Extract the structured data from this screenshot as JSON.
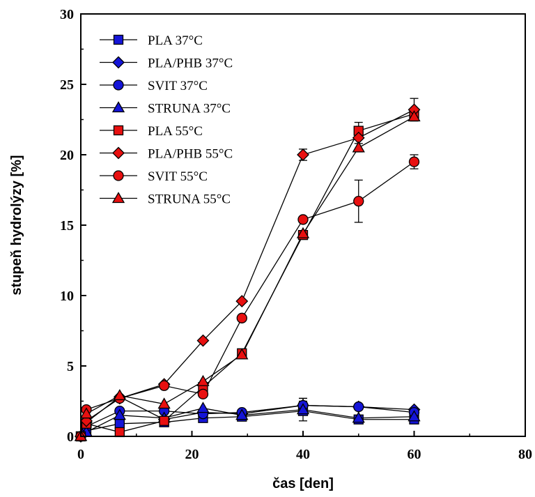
{
  "chart_data": {
    "type": "scatter",
    "xlabel": "čas [den]",
    "ylabel": "stupeň hydrolýzy [%]",
    "xlim": [
      0,
      80
    ],
    "ylim": [
      0,
      30
    ],
    "xticks": [
      0,
      20,
      40,
      60,
      80
    ],
    "yticks": [
      0,
      5,
      10,
      15,
      20,
      25,
      30
    ],
    "grid": false,
    "legend_position": "top-left",
    "colors": {
      "blue": "#1515d8",
      "red": "#e81010",
      "line": "#000000"
    },
    "series": [
      {
        "name": "PLA 37°C",
        "marker": "square",
        "color": "blue",
        "points": [
          [
            0,
            0
          ],
          [
            1,
            0.4
          ],
          [
            7,
            0.9
          ],
          [
            15,
            1.0
          ],
          [
            22,
            1.3
          ],
          [
            29,
            1.4
          ],
          [
            40,
            1.8
          ],
          [
            50,
            1.2
          ],
          [
            60,
            1.2
          ]
        ],
        "errors": [
          0,
          0,
          0,
          0,
          0,
          0,
          0.2,
          0,
          0
        ]
      },
      {
        "name": "PLA/PHB 37°C",
        "marker": "diamond",
        "color": "blue",
        "points": [
          [
            0,
            0
          ],
          [
            1,
            1.0
          ],
          [
            7,
            2.8
          ],
          [
            15,
            1.2
          ],
          [
            22,
            1.7
          ],
          [
            29,
            1.6
          ],
          [
            40,
            2.2
          ],
          [
            50,
            2.1
          ],
          [
            60,
            1.9
          ]
        ],
        "errors": [
          0,
          0,
          0,
          0,
          0,
          0,
          0.3,
          0,
          0
        ]
      },
      {
        "name": "SVIT 37°C",
        "marker": "circle",
        "color": "blue",
        "points": [
          [
            0,
            0
          ],
          [
            1,
            0.7
          ],
          [
            7,
            1.8
          ],
          [
            15,
            1.8
          ],
          [
            22,
            1.6
          ],
          [
            29,
            1.7
          ],
          [
            40,
            2.2
          ],
          [
            50,
            2.1
          ],
          [
            60,
            1.7
          ]
        ],
        "errors": [
          0,
          0,
          0,
          0,
          0,
          0,
          0.5,
          0,
          0
        ]
      },
      {
        "name": "STRUNA 37°C",
        "marker": "triangle",
        "color": "blue",
        "points": [
          [
            0,
            0
          ],
          [
            1,
            0.3
          ],
          [
            7,
            1.5
          ],
          [
            15,
            1.3
          ],
          [
            22,
            2.0
          ],
          [
            29,
            1.5
          ],
          [
            40,
            1.9
          ],
          [
            50,
            1.3
          ],
          [
            60,
            1.4
          ]
        ],
        "errors": [
          0,
          0,
          0,
          0,
          0,
          0,
          0.8,
          0,
          0
        ]
      },
      {
        "name": "PLA 55°C",
        "marker": "square",
        "color": "red",
        "points": [
          [
            0,
            0
          ],
          [
            1,
            0.9
          ],
          [
            7,
            0.3
          ],
          [
            15,
            1.1
          ],
          [
            22,
            3.5
          ],
          [
            29,
            5.9
          ],
          [
            40,
            14.3
          ],
          [
            50,
            21.7
          ],
          [
            60,
            22.9
          ]
        ],
        "errors": [
          0,
          0,
          0,
          0,
          0,
          0,
          0,
          0.6,
          0.4
        ]
      },
      {
        "name": "PLA/PHB 55°C",
        "marker": "diamond",
        "color": "red",
        "points": [
          [
            0,
            0
          ],
          [
            1,
            1.1
          ],
          [
            7,
            2.7
          ],
          [
            15,
            3.7
          ],
          [
            22,
            6.8
          ],
          [
            29,
            9.6
          ],
          [
            40,
            20.0
          ],
          [
            50,
            21.2
          ],
          [
            60,
            23.2
          ]
        ],
        "errors": [
          0,
          0,
          0,
          0,
          0,
          0,
          0.4,
          0.8,
          0.8
        ]
      },
      {
        "name": "SVIT 55°C",
        "marker": "circle",
        "color": "red",
        "points": [
          [
            0,
            0
          ],
          [
            1,
            1.9
          ],
          [
            7,
            2.7
          ],
          [
            15,
            3.6
          ],
          [
            22,
            3.0
          ],
          [
            29,
            8.4
          ],
          [
            40,
            15.4
          ],
          [
            50,
            16.7
          ],
          [
            60,
            19.5
          ]
        ],
        "errors": [
          0,
          0,
          0,
          0,
          0,
          0,
          0,
          1.5,
          0.5
        ]
      },
      {
        "name": "STRUNA 55°C",
        "marker": "triangle",
        "color": "red",
        "points": [
          [
            0,
            0
          ],
          [
            1,
            1.6
          ],
          [
            7,
            2.9
          ],
          [
            15,
            2.3
          ],
          [
            22,
            3.9
          ],
          [
            29,
            5.8
          ],
          [
            40,
            14.4
          ],
          [
            50,
            20.5
          ],
          [
            60,
            22.7
          ]
        ],
        "errors": [
          0,
          0,
          0,
          0,
          0,
          0,
          0,
          0.3,
          0.3
        ]
      }
    ]
  }
}
